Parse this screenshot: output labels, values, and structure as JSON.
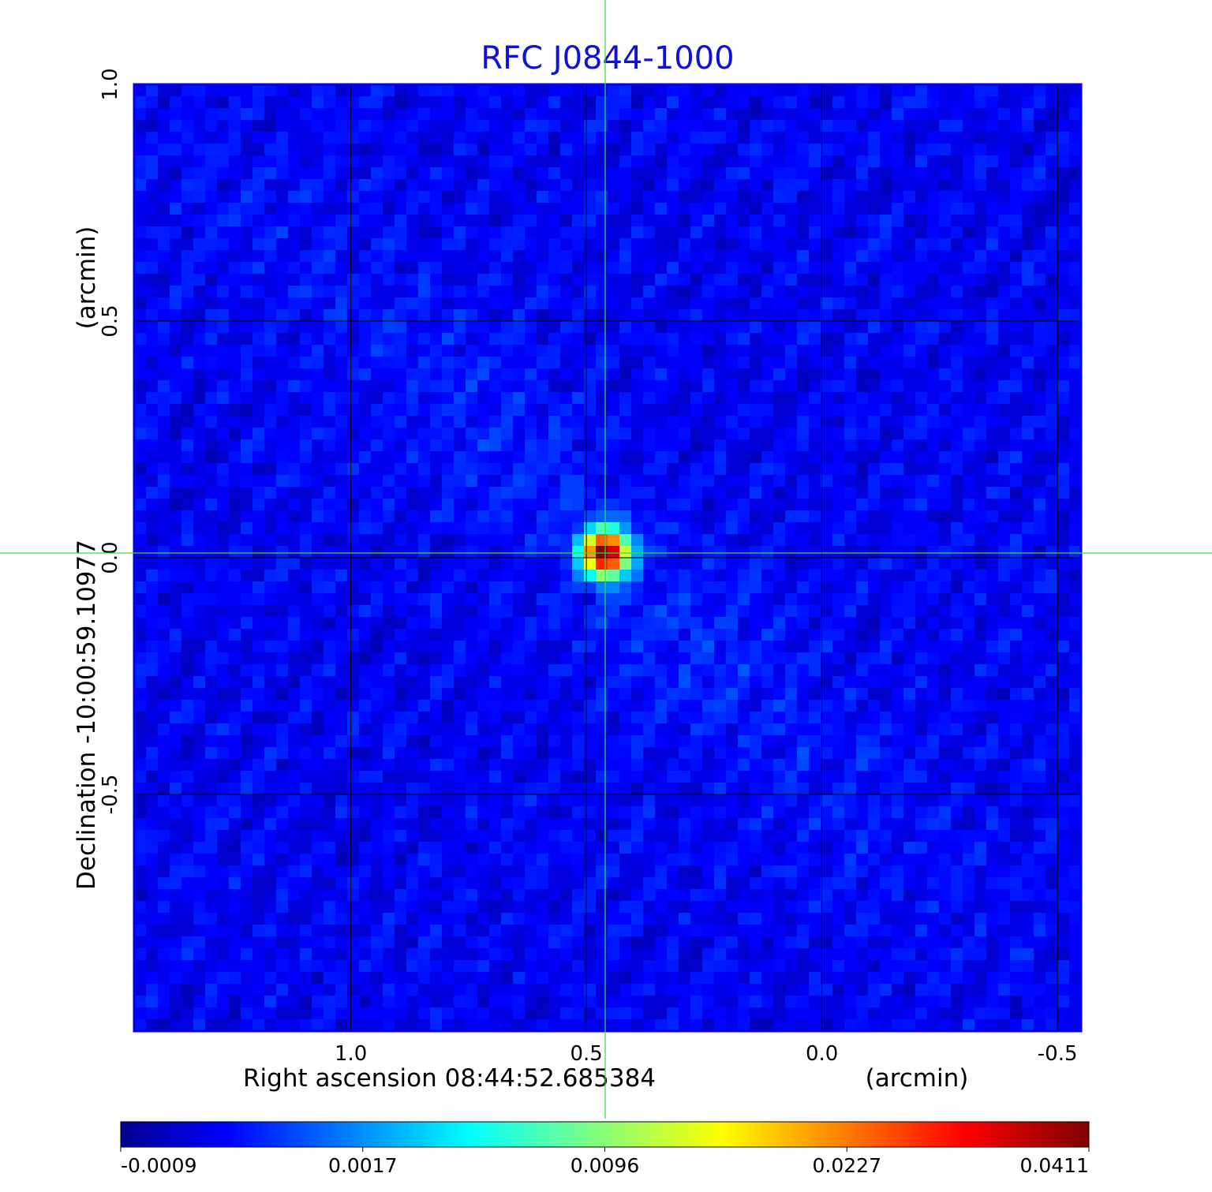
{
  "chart_data": {
    "type": "heatmap",
    "title": "RFC J0844-1000",
    "xlabel": "Right ascension  08:44:52.685384",
    "xlabel_unit": "(arcmin)",
    "ylabel": "Declination  -10:00:59.10977",
    "ylabel_unit": "(arcmin)",
    "xlim": [
      1.46,
      -0.55
    ],
    "ylim": [
      -1.0,
      1.0
    ],
    "x_ticks": [
      {
        "value": 1.0,
        "label": "1.0"
      },
      {
        "value": 0.5,
        "label": "0.5"
      },
      {
        "value": 0.0,
        "label": "0.0"
      },
      {
        "value": -0.5,
        "label": "-0.5"
      }
    ],
    "y_ticks": [
      {
        "value": 1.0,
        "label": "1.0"
      },
      {
        "value": 0.5,
        "label": "0.5"
      },
      {
        "value": 0.0,
        "label": "0.0"
      },
      {
        "value": -0.5,
        "label": "-0.5"
      }
    ],
    "grid": true,
    "crosshair": {
      "x": 0.46,
      "y": 0.01
    },
    "source": {
      "x": 0.46,
      "y": 0.01,
      "peak": 0.0411
    },
    "background_level": 0.0003,
    "colormap": "jet",
    "colorbar": {
      "placement": "bottom",
      "ticks": [
        {
          "value": -0.0009,
          "label": "-0.0009"
        },
        {
          "value": 0.0017,
          "label": "0.0017"
        },
        {
          "value": 0.0096,
          "label": "0.0096"
        },
        {
          "value": 0.0227,
          "label": "0.0227"
        },
        {
          "value": 0.0411,
          "label": "0.0411"
        }
      ]
    },
    "colors": {
      "title": "#1010d8",
      "grid": "#000000",
      "crosshair": "#30e030",
      "frame": "#0000ee"
    }
  }
}
